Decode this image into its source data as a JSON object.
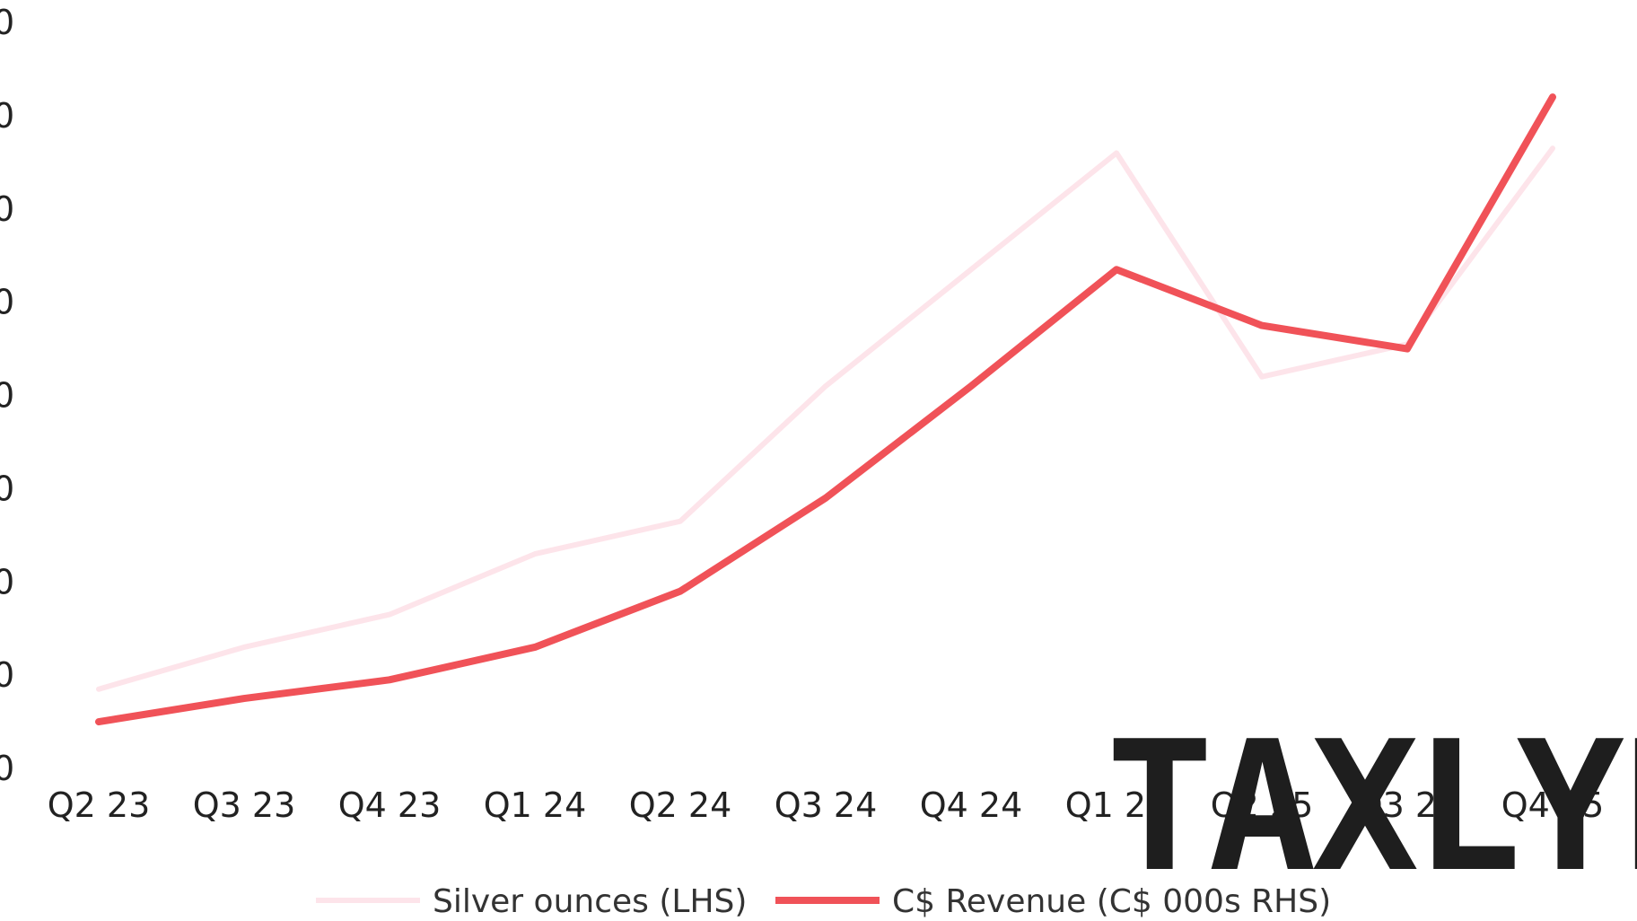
{
  "chart_data": {
    "type": "line",
    "categories": [
      "Q2 23",
      "Q3 23",
      "Q4 23",
      "Q1 24",
      "Q2 24",
      "Q3 24",
      "Q4 24",
      "Q1 25",
      "Q2 25",
      "Q3 25",
      "Q4 25"
    ],
    "series": [
      {
        "name": "Silver ounces (LHS)",
        "color": "#fde4ea",
        "values": [
          0.85,
          1.3,
          1.65,
          2.3,
          2.65,
          4.1,
          5.35,
          6.6,
          4.2,
          4.55,
          6.65
        ]
      },
      {
        "name": "C$ Revenue (C$ 000s RHS)",
        "color": "#f05258",
        "values": [
          0.5,
          0.75,
          0.95,
          1.3,
          1.9,
          2.9,
          4.1,
          5.35,
          4.75,
          4.5,
          7.2
        ]
      }
    ],
    "ylim": [
      0,
      8
    ],
    "yticks_visible": [
      "0",
      "0",
      "0",
      "0",
      "0",
      "0",
      "0",
      "0",
      "0"
    ],
    "grid": false,
    "legend_position": "bottom",
    "title": "",
    "xlabel": "",
    "ylabel": ""
  },
  "watermark": {
    "text": "TAXLYF",
    "color": "#1e1e1e"
  }
}
